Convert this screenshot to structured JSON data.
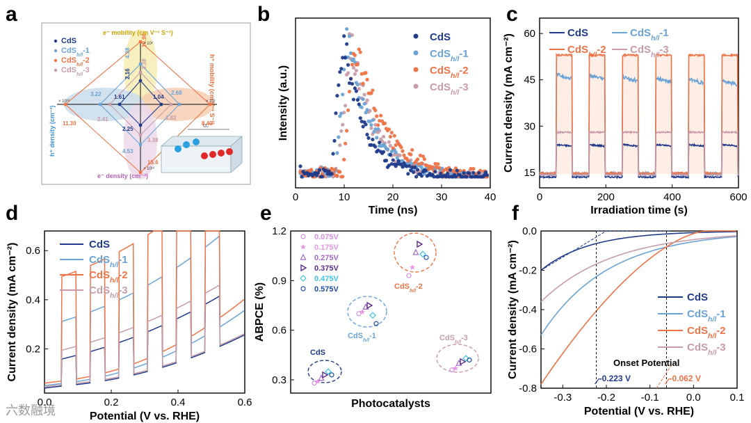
{
  "panels": [
    "a",
    "b",
    "c",
    "d",
    "e",
    "f"
  ],
  "watermark": "六数融境",
  "colors": {
    "CdS": "#1f3a8a",
    "CdS1": "#6aa3d5",
    "CdS2": "#ef7346",
    "CdS3": "#c79ca8"
  },
  "panel_a": {
    "legend": [
      {
        "base": "CdS",
        "sub": "",
        "suffix": ""
      },
      {
        "base": "CdS",
        "sub": "h/l",
        "suffix": "-1"
      },
      {
        "base": "CdS",
        "sub": "h/l",
        "suffix": "-2"
      },
      {
        "base": "CdS",
        "sub": "h/l",
        "suffix": "-3"
      }
    ],
    "top_label": "e⁻ mobility (cm V⁻¹ S⁻¹)",
    "right_label": "h⁺ mobility (cm V⁻¹ S⁻¹)",
    "left_label": "h⁺ density (cm⁻³)",
    "bottom_label": "e⁻ density (cm⁻³)",
    "scale_top": "× 10²",
    "scale_right": "× 10¹",
    "scale_left": "× 10¹⁶",
    "scale_bottom": "× 10¹⁶",
    "values": {
      "top": [
        "2.16",
        "4.38",
        "10.96",
        "3.38"
      ],
      "right": [
        "1.04",
        "2.68",
        "8.40",
        "1.82"
      ],
      "left": [
        "1.61",
        "3.22",
        "11.30",
        "2.41"
      ],
      "bottom": [
        "2.25",
        "4.53",
        "15.6",
        "3.38"
      ]
    },
    "schematic_label": "U₀"
  },
  "chart_data": [
    {
      "panel": "b",
      "type": "scatter",
      "xlabel": "Time (ns)",
      "ylabel": "Intensity (a.u.)",
      "xlim": [
        0,
        40
      ],
      "xticks": [
        0,
        10,
        20,
        30,
        40
      ],
      "series": [
        {
          "name": "CdS",
          "sub": "",
          "suffix": "",
          "peak": 9.8
        },
        {
          "name": "CdS",
          "sub": "h/l",
          "suffix": "-1",
          "peak": 10.6
        },
        {
          "name": "CdS",
          "sub": "h/l",
          "suffix": "-2",
          "peak": 12.2
        },
        {
          "name": "CdS",
          "sub": "h/l",
          "suffix": "-3",
          "peak": 11.2
        }
      ]
    },
    {
      "panel": "c",
      "type": "line",
      "xlabel": "Irradiation time (s)",
      "ylabel": "Current density (mA cm⁻²)",
      "xlim": [
        0,
        600
      ],
      "ylim": [
        10,
        65
      ],
      "xticks": [
        0,
        200,
        400,
        600
      ],
      "yticks": [
        15,
        30,
        45,
        60
      ],
      "on_intervals": [
        [
          50,
          100
        ],
        [
          150,
          200
        ],
        [
          250,
          300
        ],
        [
          350,
          400
        ],
        [
          450,
          500
        ],
        [
          550,
          600
        ]
      ],
      "series": [
        {
          "name": "CdS",
          "sub": "",
          "suffix": "",
          "off": 13.5,
          "on": 24
        },
        {
          "name": "CdS",
          "sub": "h/l",
          "suffix": "-1",
          "off": 14.5,
          "on": 47
        },
        {
          "name": "CdS",
          "sub": "h/l",
          "suffix": "-2",
          "off": 14.8,
          "on": 53
        },
        {
          "name": "CdS",
          "sub": "h/l",
          "suffix": "-3",
          "off": 14.2,
          "on": 28
        }
      ]
    },
    {
      "panel": "d",
      "type": "line",
      "xlabel": "Potential (V vs. RHE)",
      "ylabel": "Current density (mA cm⁻²)",
      "xlim": [
        0,
        0.6
      ],
      "ylim": [
        0.02,
        0.68
      ],
      "xticks": [
        0.0,
        0.2,
        0.4,
        0.6
      ],
      "yticks": [
        0.2,
        0.4,
        0.6
      ],
      "series": [
        {
          "name": "CdS",
          "sub": "",
          "suffix": ""
        },
        {
          "name": "CdS",
          "sub": "h/l",
          "suffix": "-1"
        },
        {
          "name": "CdS",
          "sub": "h/l",
          "suffix": "-2"
        },
        {
          "name": "CdS",
          "sub": "h/l",
          "suffix": "-3"
        }
      ]
    },
    {
      "panel": "e",
      "type": "scatter",
      "xlabel": "Photocatalysts",
      "ylabel": "ABPCE (%)",
      "ylim": [
        0.22,
        1.2
      ],
      "yticks": [
        0.3,
        0.6,
        0.9,
        1.2
      ],
      "legend": [
        "0.075V",
        "0.175V",
        "0.275V",
        "0.375V",
        "0.475V",
        "0.575V"
      ],
      "legend_colors": [
        "#d58fe0",
        "#e795e8",
        "#a169c4",
        "#5a2a8a",
        "#3ec2e8",
        "#1f4fa3"
      ],
      "groups": [
        {
          "name": "CdS",
          "sub": "",
          "suffix": "",
          "values": [
            0.28,
            0.29,
            0.31,
            0.33,
            0.35,
            0.33
          ]
        },
        {
          "name": "CdS",
          "sub": "h/l",
          "suffix": "-1",
          "values": [
            0.7,
            0.71,
            0.74,
            0.75,
            0.69,
            0.64
          ]
        },
        {
          "name": "CdS",
          "sub": "h/l",
          "suffix": "-2",
          "values": [
            0.93,
            0.98,
            1.07,
            1.12,
            1.06,
            1.04
          ]
        },
        {
          "name": "CdS",
          "sub": "h/l",
          "suffix": "-3",
          "values": [
            0.36,
            0.37,
            0.4,
            0.41,
            0.43,
            0.42
          ]
        }
      ]
    },
    {
      "panel": "f",
      "type": "line",
      "xlabel": "Potential (V vs. RHE)",
      "ylabel": "Current density (mA cm⁻²)",
      "xlim": [
        -0.35,
        0.1
      ],
      "ylim": [
        -0.8,
        0.0
      ],
      "xticks": [
        -0.3,
        -0.2,
        -0.1,
        0.0,
        0.1
      ],
      "yticks": [
        0.0,
        -0.2,
        -0.4,
        -0.6,
        -0.8
      ],
      "annotation": "Onset Potential",
      "onsets": [
        {
          "value": -0.223,
          "label": "-0.223 V"
        },
        {
          "value": -0.062,
          "label": "-0.062 V"
        }
      ],
      "series": [
        {
          "name": "CdS",
          "sub": "",
          "suffix": "",
          "start": -0.2
        },
        {
          "name": "CdS",
          "sub": "h/l",
          "suffix": "-1",
          "start": -0.53
        },
        {
          "name": "CdS",
          "sub": "h/l",
          "suffix": "-2",
          "start": -0.78
        },
        {
          "name": "CdS",
          "sub": "h/l",
          "suffix": "-3",
          "start": -0.36
        }
      ]
    }
  ]
}
